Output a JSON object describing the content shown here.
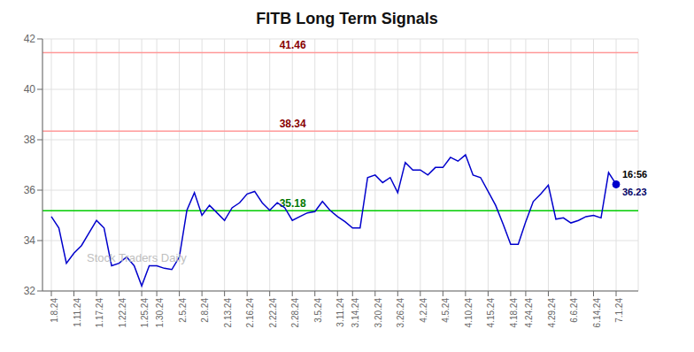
{
  "chart_data": {
    "type": "line",
    "title": "FITB Long Term Signals",
    "color": "#0000cc",
    "marker": "last",
    "grid": true,
    "ylim": [
      32,
      42
    ],
    "yticks": [
      32,
      34,
      36,
      38,
      40,
      42
    ],
    "categories": [
      "1.8.24",
      null,
      null,
      "1.11.24",
      null,
      null,
      "1.17.24",
      null,
      null,
      "1.22.24",
      null,
      null,
      "1.25.24",
      null,
      "1.30.24",
      null,
      null,
      "2.5.24",
      null,
      null,
      "2.8.24",
      null,
      null,
      "2.13.24",
      null,
      null,
      "2.16.24",
      null,
      null,
      "2.22.24",
      null,
      null,
      "2.28.24",
      null,
      null,
      "3.5.24",
      null,
      null,
      "3.11.24",
      null,
      "3.14.24",
      null,
      null,
      "3.20.24",
      null,
      null,
      "3.26.24",
      null,
      null,
      "4.2.24",
      null,
      null,
      "4.5.24",
      null,
      null,
      "4.10.24",
      null,
      null,
      "4.15.24",
      null,
      null,
      "4.18.24",
      null,
      "4.24.24",
      null,
      null,
      "4.29.24",
      null,
      null,
      "6.6.24",
      null,
      null,
      "6.14.24",
      null,
      null,
      "7.1.24"
    ],
    "values": [
      34.95,
      34.5,
      33.1,
      33.5,
      33.8,
      34.3,
      34.8,
      34.5,
      33.0,
      33.1,
      33.35,
      33.0,
      32.2,
      33.0,
      33.0,
      32.9,
      32.85,
      33.35,
      35.2,
      35.9,
      35.0,
      35.4,
      35.1,
      34.8,
      35.3,
      35.5,
      35.85,
      35.95,
      35.5,
      35.2,
      35.5,
      35.3,
      34.8,
      34.95,
      35.1,
      35.15,
      35.55,
      35.2,
      34.95,
      34.75,
      34.5,
      34.5,
      36.5,
      36.6,
      36.3,
      36.5,
      35.9,
      37.1,
      36.8,
      36.8,
      36.6,
      36.9,
      36.9,
      37.3,
      37.15,
      37.4,
      36.6,
      36.5,
      35.95,
      35.4,
      34.65,
      33.85,
      33.85,
      34.75,
      35.55,
      35.85,
      36.2,
      34.85,
      34.9,
      34.7,
      34.8,
      34.95,
      35.0,
      34.9,
      36.7,
      36.23
    ],
    "hlines": [
      {
        "y": 41.46,
        "color": "#ff9999",
        "label": "41.46",
        "label_color": "#880000"
      },
      {
        "y": 38.34,
        "color": "#ff9999",
        "label": "38.34",
        "label_color": "#880000"
      },
      {
        "y": 35.18,
        "color": "#00cc00",
        "label": "35.18",
        "label_color": "#007700"
      }
    ],
    "annotations": [
      {
        "text": "16:56",
        "color": "#000000"
      },
      {
        "text": "36.23",
        "color": "#000066"
      }
    ],
    "watermark": {
      "text": "Stock Traders Daily",
      "color": "#c0c0c0"
    }
  }
}
